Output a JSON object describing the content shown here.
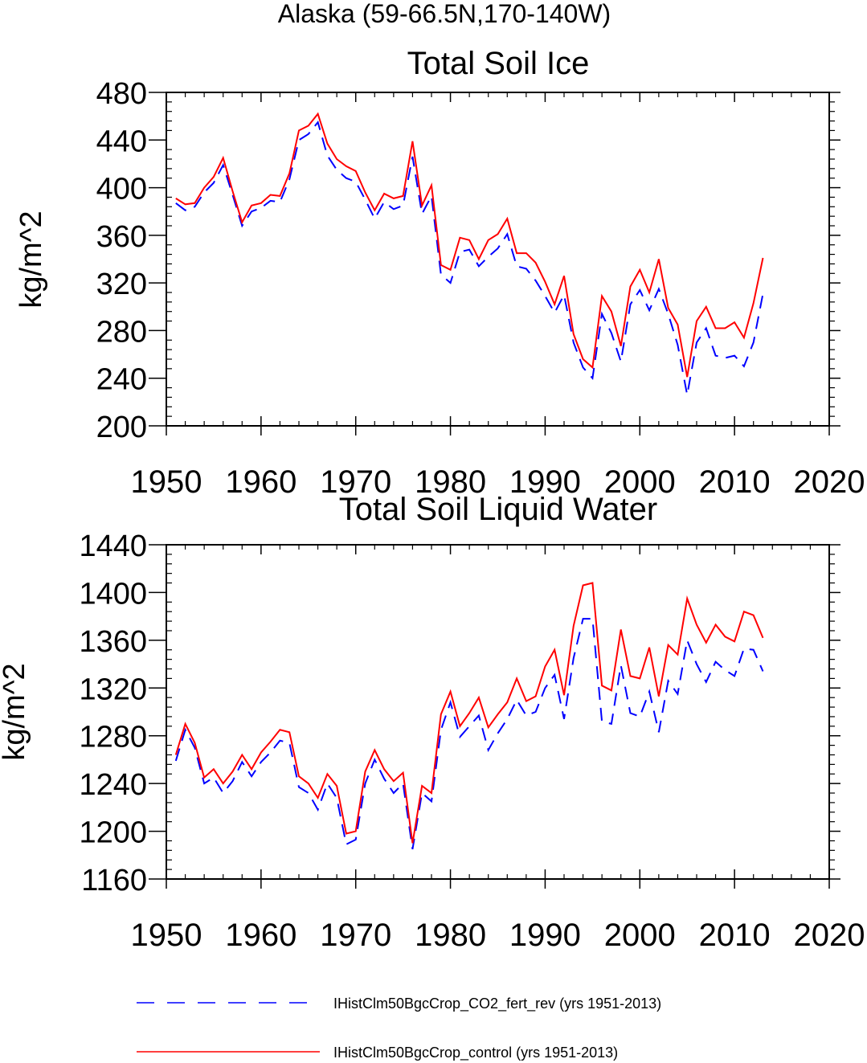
{
  "page_title": "Alaska (59-66.5N,170-140W)",
  "colors": {
    "control": "#ff0000",
    "co2_fert_rev": "#0000ff",
    "axis": "#000000"
  },
  "legend": {
    "placement": "bottom",
    "entries": [
      {
        "key": "co2",
        "label": "IHistClm50BgcCrop_CO2_fert_rev (yrs 1951-2013)",
        "style": "dashed",
        "color": "#0000ff"
      },
      {
        "key": "ctrl",
        "label": "IHistClm50BgcCrop_control (yrs 1951-2013)",
        "style": "solid",
        "color": "#ff0000"
      }
    ]
  },
  "chart_data": [
    {
      "type": "line",
      "title": "Total Soil Ice",
      "xlabel": "",
      "ylabel": "kg/m^2",
      "xlim": [
        1950,
        2020
      ],
      "ylim": [
        200,
        480
      ],
      "xticks": [
        1950,
        1960,
        1970,
        1980,
        1990,
        2000,
        2010,
        2020
      ],
      "yticks": [
        200,
        240,
        280,
        320,
        360,
        400,
        440,
        480
      ],
      "grid": false,
      "x": [
        1951,
        1952,
        1953,
        1954,
        1955,
        1956,
        1957,
        1958,
        1959,
        1960,
        1961,
        1962,
        1963,
        1964,
        1965,
        1966,
        1967,
        1968,
        1969,
        1970,
        1971,
        1972,
        1973,
        1974,
        1975,
        1976,
        1977,
        1978,
        1979,
        1980,
        1981,
        1982,
        1983,
        1984,
        1985,
        1986,
        1987,
        1988,
        1989,
        1990,
        1991,
        1992,
        1993,
        1994,
        1995,
        1996,
        1997,
        1998,
        1999,
        2000,
        2001,
        2002,
        2003,
        2004,
        2005,
        2006,
        2007,
        2008,
        2009,
        2010,
        2011,
        2012,
        2013
      ],
      "series": [
        {
          "key": "co2",
          "style": "dashed",
          "color": "#0000ff",
          "values": [
            387,
            381,
            384,
            396,
            404,
            419,
            394,
            368,
            380,
            383,
            389,
            388,
            407,
            440,
            445,
            455,
            427,
            415,
            408,
            405,
            390,
            374,
            388,
            382,
            385,
            426,
            378,
            393,
            327,
            320,
            346,
            348,
            334,
            342,
            349,
            361,
            334,
            332,
            322,
            309,
            295,
            310,
            270,
            249,
            240,
            294,
            278,
            254,
            302,
            314,
            297,
            315,
            294,
            268,
            226,
            270,
            282,
            259,
            257,
            259,
            250,
            270,
            311
          ]
        },
        {
          "key": "ctrl",
          "style": "solid",
          "color": "#ff0000",
          "values": [
            391,
            386,
            387,
            400,
            409,
            425,
            397,
            371,
            385,
            387,
            394,
            393,
            412,
            448,
            452,
            462,
            437,
            424,
            418,
            414,
            396,
            381,
            395,
            391,
            393,
            439,
            385,
            402,
            335,
            331,
            358,
            356,
            340,
            356,
            361,
            374,
            345,
            345,
            337,
            321,
            302,
            326,
            277,
            256,
            249,
            309,
            296,
            267,
            317,
            331,
            312,
            340,
            299,
            285,
            241,
            288,
            300,
            282,
            282,
            287,
            274,
            303,
            341
          ]
        }
      ]
    },
    {
      "type": "line",
      "title": "Total Soil Liquid Water",
      "xlabel": "",
      "ylabel": "kg/m^2",
      "xlim": [
        1950,
        2020
      ],
      "ylim": [
        1160,
        1440
      ],
      "xticks": [
        1950,
        1960,
        1970,
        1980,
        1990,
        2000,
        2010,
        2020
      ],
      "yticks": [
        1160,
        1200,
        1240,
        1280,
        1320,
        1360,
        1400,
        1440
      ],
      "grid": false,
      "x": [
        1951,
        1952,
        1953,
        1954,
        1955,
        1956,
        1957,
        1958,
        1959,
        1960,
        1961,
        1962,
        1963,
        1964,
        1965,
        1966,
        1967,
        1968,
        1969,
        1970,
        1971,
        1972,
        1973,
        1974,
        1975,
        1976,
        1977,
        1978,
        1979,
        1980,
        1981,
        1982,
        1983,
        1984,
        1985,
        1986,
        1987,
        1988,
        1989,
        1990,
        1991,
        1992,
        1993,
        1994,
        1995,
        1996,
        1997,
        1998,
        1999,
        2000,
        2001,
        2002,
        2003,
        2004,
        2005,
        2006,
        2007,
        2008,
        2009,
        2010,
        2011,
        2012,
        2013
      ],
      "series": [
        {
          "key": "co2",
          "style": "dashed",
          "color": "#0000ff",
          "values": [
            1259,
            1285,
            1270,
            1240,
            1245,
            1232,
            1242,
            1258,
            1246,
            1258,
            1266,
            1276,
            1274,
            1237,
            1232,
            1218,
            1240,
            1228,
            1189,
            1193,
            1240,
            1260,
            1244,
            1232,
            1240,
            1185,
            1232,
            1225,
            1285,
            1308,
            1279,
            1288,
            1297,
            1268,
            1282,
            1294,
            1310,
            1297,
            1300,
            1320,
            1331,
            1294,
            1345,
            1378,
            1378,
            1292,
            1290,
            1339,
            1299,
            1296,
            1317,
            1283,
            1326,
            1315,
            1360,
            1340,
            1325,
            1342,
            1335,
            1330,
            1353,
            1352,
            1334
          ]
        },
        {
          "key": "ctrl",
          "style": "solid",
          "color": "#ff0000",
          "values": [
            1264,
            1290,
            1274,
            1245,
            1252,
            1240,
            1250,
            1264,
            1252,
            1266,
            1275,
            1285,
            1283,
            1246,
            1240,
            1228,
            1248,
            1238,
            1198,
            1200,
            1250,
            1268,
            1252,
            1242,
            1249,
            1190,
            1238,
            1232,
            1298,
            1317,
            1288,
            1299,
            1312,
            1287,
            1298,
            1308,
            1328,
            1309,
            1313,
            1338,
            1352,
            1314,
            1372,
            1406,
            1408,
            1322,
            1318,
            1369,
            1330,
            1328,
            1354,
            1313,
            1356,
            1348,
            1395,
            1373,
            1358,
            1373,
            1363,
            1359,
            1384,
            1381,
            1362
          ]
        }
      ]
    }
  ]
}
